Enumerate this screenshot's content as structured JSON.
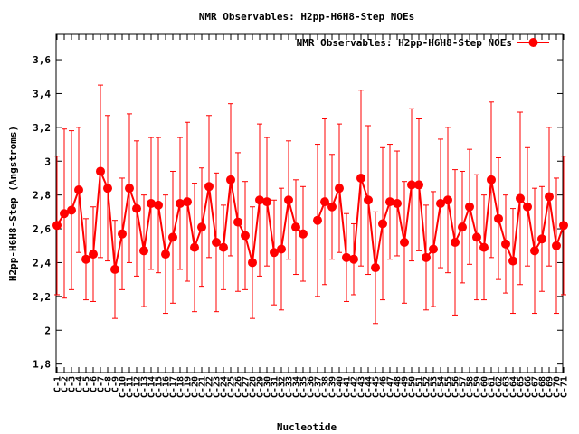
{
  "chart_data": {
    "type": "line",
    "title": "NMR Observables: H2pp-H6H8-Step NOEs",
    "xlabel": "Nucleotide",
    "ylabel": "H2pp-H6H8-Step (Angstroms)",
    "ylim": [
      1.75,
      3.75
    ],
    "yticks": [
      1.8,
      2,
      2.2,
      2.4,
      2.6,
      2.8,
      3,
      3.2,
      3.4,
      3.6
    ],
    "ytick_labels": [
      "1,8",
      "2",
      "2,2",
      "2,4",
      "2,6",
      "2,8",
      "3",
      "3,2",
      "3,4",
      "3,6"
    ],
    "grid": false,
    "legend": "top-right",
    "categories": [
      "C-1",
      "C-2",
      "C-3",
      "C-4",
      "C-5",
      "C-6",
      "C-7",
      "C-8",
      "C-9",
      "C-10",
      "C-11",
      "C-12",
      "C-13",
      "C-14",
      "C-15",
      "C-16",
      "C-17",
      "C-18",
      "C-19",
      "C-20",
      "C-21",
      "C-22",
      "C-23",
      "C-24",
      "C-25",
      "C-26",
      "C-27",
      "C-28",
      "C-29",
      "C-30",
      "C-31",
      "C-32",
      "C-33",
      "C-34",
      "C-35",
      "C-36",
      "C-37",
      "C-38",
      "C-39",
      "C-40",
      "C-41",
      "C-42",
      "C-43",
      "C-44",
      "C-45",
      "C-46",
      "C-47",
      "C-48",
      "C-49",
      "C-50",
      "C-51",
      "C-52",
      "C-53",
      "C-54",
      "C-55",
      "C-56",
      "C-57",
      "C-58",
      "C-59",
      "C-60",
      "C-61",
      "C-62",
      "C-63",
      "C-64",
      "C-65",
      "C-66",
      "C-67",
      "C-68",
      "C-69",
      "C-70",
      "C-71"
    ],
    "series": [
      {
        "name": "NMR Observables: H2pp-H6H8-Step NOEs",
        "color": "#ff0000",
        "values": [
          2.62,
          2.69,
          2.71,
          2.83,
          2.42,
          2.45,
          2.94,
          2.84,
          2.36,
          2.57,
          2.84,
          2.72,
          2.47,
          2.75,
          2.74,
          2.45,
          2.55,
          2.75,
          2.76,
          2.49,
          2.61,
          2.85,
          2.52,
          2.49,
          2.89,
          2.64,
          2.56,
          2.4,
          2.77,
          2.76,
          2.46,
          2.48,
          2.77,
          2.61,
          2.57,
          null,
          2.65,
          2.76,
          2.73,
          2.84,
          2.43,
          2.42,
          2.9,
          2.77,
          2.37,
          2.63,
          2.76,
          2.75,
          2.52,
          2.86,
          2.86,
          2.43,
          2.48,
          2.75,
          2.77,
          2.52,
          2.61,
          2.73,
          2.55,
          2.49,
          2.89,
          2.66,
          2.51,
          2.41,
          2.78,
          2.73,
          2.47,
          2.54,
          2.79,
          2.5,
          2.62
        ],
        "errors": [
          0.41,
          0.5,
          0.47,
          0.37,
          0.24,
          0.28,
          0.51,
          0.43,
          0.29,
          0.33,
          0.44,
          0.4,
          0.33,
          0.39,
          0.4,
          0.35,
          0.39,
          0.39,
          0.47,
          0.38,
          0.35,
          0.42,
          0.41,
          0.25,
          0.45,
          0.41,
          0.32,
          0.33,
          0.45,
          0.38,
          0.31,
          0.36,
          0.35,
          0.28,
          0.28,
          null,
          0.45,
          0.49,
          0.31,
          0.38,
          0.26,
          0.21,
          0.52,
          0.44,
          0.33,
          0.45,
          0.34,
          0.31,
          0.36,
          0.45,
          0.39,
          0.31,
          0.34,
          0.38,
          0.43,
          0.43,
          0.33,
          0.34,
          0.37,
          0.31,
          0.46,
          0.36,
          0.29,
          0.31,
          0.51,
          0.35,
          0.37,
          0.31,
          0.41,
          0.4,
          0.41
        ]
      }
    ]
  }
}
